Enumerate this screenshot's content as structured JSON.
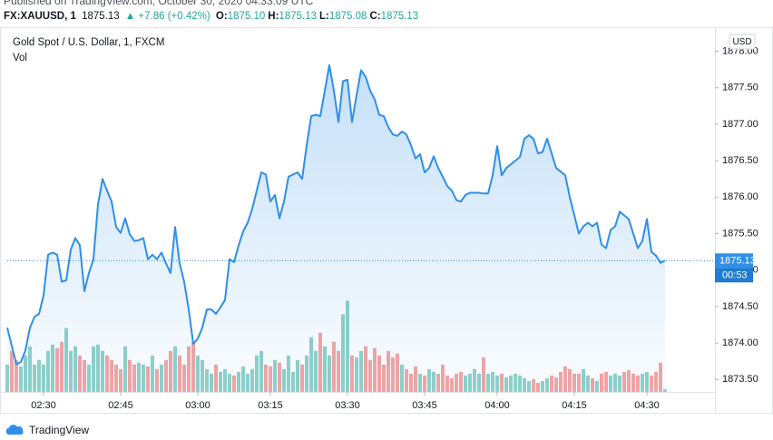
{
  "header": {
    "published": "Published on TradingView.com, October 30, 2020 04:33:09 UTC",
    "symbol": "FX:XAUUSD, 1",
    "last": "1875.13",
    "change": "▲ +7.86 (+0.42%)",
    "quote": [
      {
        "label": "O:",
        "value": "1875.10"
      },
      {
        "label": "H:",
        "value": "1875.13"
      },
      {
        "label": "L:",
        "value": "1875.08"
      },
      {
        "label": "C:",
        "value": "1875.13"
      }
    ]
  },
  "footer": {
    "brand": "TradingView"
  },
  "chart_data": {
    "type": "area",
    "currency": "USD",
    "countdown": "00:53",
    "categories": [
      null,
      null,
      null,
      null,
      null,
      null,
      null,
      null,
      "02:30",
      null,
      null,
      null,
      null,
      null,
      null,
      null,
      null,
      null,
      null,
      null,
      null,
      null,
      null,
      null,
      null,
      "02:45",
      null,
      null,
      null,
      null,
      null,
      null,
      null,
      null,
      null,
      null,
      null,
      null,
      null,
      null,
      null,
      null,
      "03:00",
      null,
      null,
      null,
      null,
      null,
      null,
      null,
      null,
      null,
      null,
      null,
      null,
      null,
      null,
      null,
      "03:15",
      null,
      null,
      null,
      null,
      null,
      null,
      null,
      null,
      null,
      null,
      null,
      null,
      null,
      null,
      null,
      null,
      "03:30",
      null,
      null,
      null,
      null,
      null,
      null,
      null,
      null,
      null,
      null,
      null,
      null,
      null,
      null,
      null,
      null,
      "03:45",
      null,
      null,
      null,
      null,
      null,
      null,
      null,
      null,
      null,
      null,
      null,
      null,
      null,
      null,
      null,
      "04:00",
      null,
      null,
      null,
      null,
      null,
      null,
      null,
      null,
      null,
      null,
      null,
      null,
      null,
      null,
      null,
      null,
      "04:15",
      null,
      null,
      null,
      null,
      null,
      null,
      null,
      null,
      null,
      null,
      null,
      null,
      null,
      null,
      null,
      "04:30",
      null,
      null,
      null,
      null
    ],
    "series": [
      {
        "name": "Gold Spot / U.S. Dollar, 1, FXCM",
        "color": "#2f8fe8",
        "values": [
          1874.21,
          1873.96,
          1873.71,
          1873.74,
          1873.9,
          1874.21,
          1874.36,
          1874.4,
          1874.65,
          1875.21,
          1875.24,
          1875.21,
          1874.84,
          1874.86,
          1875.28,
          1875.44,
          1875.34,
          1874.71,
          1874.96,
          1875.15,
          1875.9,
          1876.25,
          1876.09,
          1875.94,
          1875.59,
          1875.51,
          1875.71,
          1875.49,
          1875.4,
          1875.41,
          1875.44,
          1875.15,
          1875.21,
          1875.15,
          1875.24,
          1875.09,
          1874.96,
          1875.59,
          1875.09,
          1874.84,
          1874.46,
          1873.99,
          1874.06,
          1874.21,
          1874.46,
          1874.46,
          1874.4,
          1874.49,
          1874.59,
          1875.15,
          1875.11,
          1875.34,
          1875.53,
          1875.65,
          1875.84,
          1876.09,
          1876.34,
          1876.31,
          1875.94,
          1876.03,
          1875.71,
          1875.94,
          1876.28,
          1876.31,
          1876.34,
          1876.25,
          1876.71,
          1877.11,
          1877.13,
          1877.11,
          1877.46,
          1877.81,
          1877.46,
          1877.03,
          1877.59,
          1877.61,
          1877.03,
          1877.4,
          1877.74,
          1877.65,
          1877.46,
          1877.34,
          1877.13,
          1877.11,
          1876.96,
          1876.86,
          1876.84,
          1876.9,
          1876.86,
          1876.71,
          1876.53,
          1876.59,
          1876.34,
          1876.4,
          1876.56,
          1876.4,
          1876.28,
          1876.15,
          1876.09,
          1875.96,
          1875.94,
          1876.03,
          1876.06,
          1876.06,
          1876.06,
          1876.05,
          1876.05,
          1876.3,
          1876.7,
          1876.3,
          1876.4,
          1876.45,
          1876.5,
          1876.55,
          1876.8,
          1876.85,
          1876.8,
          1876.6,
          1876.62,
          1876.8,
          1876.6,
          1876.4,
          1876.35,
          1876.3,
          1876.0,
          1875.75,
          1875.5,
          1875.6,
          1875.65,
          1875.6,
          1875.65,
          1875.35,
          1875.3,
          1875.55,
          1875.6,
          1875.8,
          1875.75,
          1875.7,
          1875.5,
          1875.3,
          1875.4,
          1875.7,
          1875.25,
          1875.2,
          1875.1,
          1875.13
        ]
      },
      {
        "name": "Vol",
        "type": "bar",
        "up_color": "#8fd1c9",
        "down_color": "#f3a5a3",
        "values": [
          30,
          45,
          35,
          28,
          40,
          50,
          30,
          35,
          30,
          45,
          52,
          48,
          55,
          70,
          45,
          50,
          40,
          35,
          30,
          50,
          52,
          45,
          40,
          35,
          30,
          25,
          50,
          35,
          30,
          32,
          30,
          28,
          40,
          25,
          30,
          35,
          45,
          50,
          40,
          30,
          50,
          55,
          40,
          35,
          25,
          20,
          30,
          22,
          25,
          20,
          18,
          22,
          28,
          20,
          25,
          40,
          45,
          30,
          28,
          35,
          32,
          25,
          40,
          22,
          35,
          30,
          40,
          60,
          45,
          65,
          50,
          40,
          55,
          45,
          85,
          100,
          40,
          38,
          45,
          50,
          35,
          48,
          40,
          30,
          45,
          38,
          42,
          30,
          25,
          20,
          28,
          20,
          18,
          25,
          22,
          20,
          30,
          18,
          15,
          20,
          22,
          18,
          20,
          25,
          20,
          38,
          20,
          22,
          18,
          20,
          16,
          18,
          20,
          18,
          15,
          12,
          14,
          10,
          12,
          15,
          18,
          16,
          22,
          28,
          25,
          20,
          20,
          25,
          18,
          15,
          12,
          20,
          22,
          18,
          20,
          18,
          22,
          24,
          20,
          18,
          20,
          22,
          18,
          22,
          32,
          3
        ]
      }
    ],
    "ylim": [
      1873.33,
      1878.33
    ],
    "yticks": [
      {
        "value": 1873.5,
        "label": "1873.50"
      },
      {
        "value": 1874,
        "label": "1874.00"
      },
      {
        "value": 1874.5,
        "label": "1874.50"
      },
      {
        "value": 1875,
        "label": "1875.00"
      },
      {
        "value": 1875.5,
        "label": "1875.50"
      },
      {
        "value": 1876,
        "label": "1876.00"
      },
      {
        "value": 1876.5,
        "label": "1876.50"
      },
      {
        "value": 1877,
        "label": "1877.00"
      },
      {
        "value": 1877.5,
        "label": "1877.50"
      },
      {
        "value": 1878,
        "label": "1878.00"
      }
    ],
    "volume_ylim": [
      0,
      400
    ],
    "grid": false
  }
}
